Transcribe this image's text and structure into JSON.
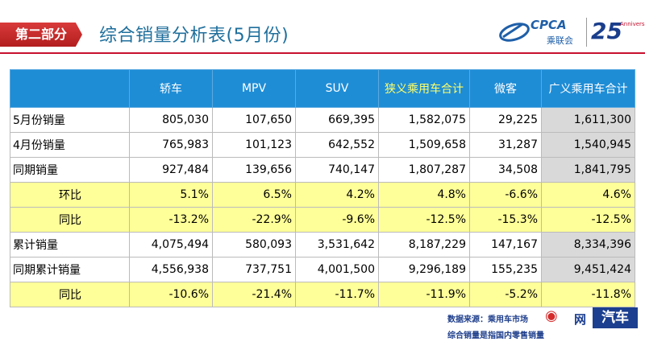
{
  "header": {
    "section": "第二部分",
    "title": "综合销量分析表(5月份)",
    "logo": {
      "cpca_text": "CPCA",
      "cpca_sub": "乘联会",
      "anniversary_num": "25",
      "anniversary_text": "Anniversary"
    },
    "colors": {
      "accent": "#c8102e",
      "table_header": "#1f8dd6",
      "highlight": "#ffff99"
    }
  },
  "table": {
    "columns": [
      "",
      "轿车",
      "MPV",
      "SUV",
      "狭义乘用车合计",
      "微客",
      "广义乘用车合计"
    ],
    "rows": [
      {
        "label": "5月份销量",
        "values": [
          "805,030",
          "107,650",
          "669,395",
          "1,582,075",
          "29,225",
          "1,611,300"
        ],
        "style": "normal"
      },
      {
        "label": "4月份销量",
        "values": [
          "765,983",
          "101,123",
          "642,552",
          "1,509,658",
          "31,287",
          "1,540,945"
        ],
        "style": "normal"
      },
      {
        "label": "同期销量",
        "values": [
          "927,484",
          "139,656",
          "740,147",
          "1,807,287",
          "34,508",
          "1,841,795"
        ],
        "style": "normal"
      },
      {
        "label": "环比",
        "values": [
          "5.1%",
          "6.5%",
          "4.2%",
          "4.8%",
          "-6.6%",
          "4.6%"
        ],
        "style": "yellow"
      },
      {
        "label": "同比",
        "values": [
          "-13.2%",
          "-22.9%",
          "-9.6%",
          "-12.5%",
          "-15.3%",
          "-12.5%"
        ],
        "style": "yellow"
      },
      {
        "label": "累计销量",
        "values": [
          "4,075,494",
          "580,093",
          "3,531,642",
          "8,187,229",
          "147,167",
          "8,334,396"
        ],
        "style": "normal"
      },
      {
        "label": "同期累计销量",
        "values": [
          "4,556,938",
          "737,751",
          "4,001,500",
          "9,296,189",
          "155,235",
          "9,451,424"
        ],
        "style": "normal"
      },
      {
        "label": "同比",
        "values": [
          "-10.6%",
          "-21.4%",
          "-11.7%",
          "-11.9%",
          "-5.2%",
          "-11.8%"
        ],
        "style": "yellow"
      }
    ]
  },
  "footer": {
    "source": "数据来源：乘用车市场",
    "note": "综合销量是指国内零售销量",
    "watermark_car": "汽车",
    "watermark_net": "网"
  }
}
